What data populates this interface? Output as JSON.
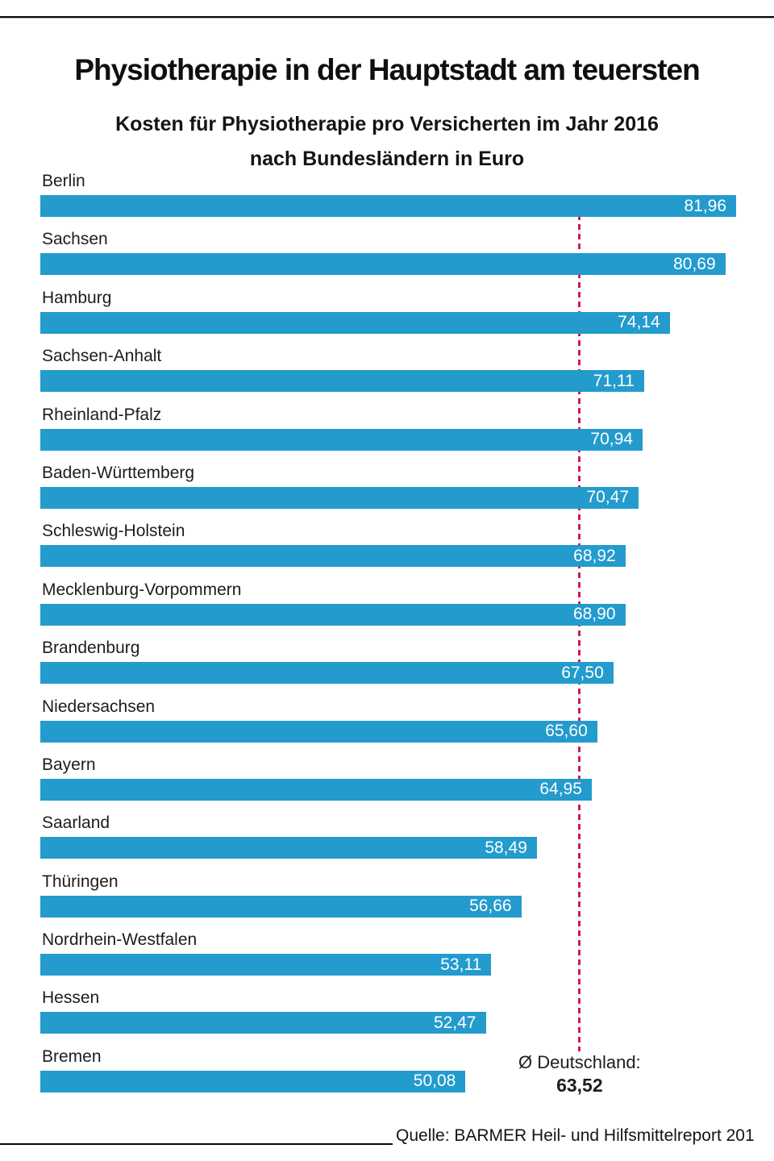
{
  "header": {
    "title": "Physiotherapie in der Hauptstadt am teuersten",
    "subtitle_line1": "Kosten für Physiotherapie pro Versicherten im Jahr 2016",
    "subtitle_line2": "nach Bundesländern in Euro"
  },
  "chart_data": {
    "type": "bar",
    "orientation": "horizontal",
    "title": "Physiotherapie in der Hauptstadt am teuersten",
    "subtitle": "Kosten für Physiotherapie pro Versicherten im Jahr 2016 nach Bundesländern in Euro",
    "categories": [
      "Berlin",
      "Sachsen",
      "Hamburg",
      "Sachsen-Anhalt",
      "Rheinland-Pfalz",
      "Baden-Württemberg",
      "Schleswig-Holstein",
      "Mecklenburg-Vorpommern",
      "Brandenburg",
      "Niedersachsen",
      "Bayern",
      "Saarland",
      "Thüringen",
      "Nordrhein-Westfalen",
      "Hessen",
      "Bremen"
    ],
    "values": [
      81.96,
      80.69,
      74.14,
      71.11,
      70.94,
      70.47,
      68.92,
      68.9,
      67.5,
      65.6,
      64.95,
      58.49,
      56.66,
      53.11,
      52.47,
      50.08
    ],
    "value_labels": [
      "81,96",
      "80,69",
      "74,14",
      "71,11",
      "70,94",
      "70,47",
      "68,92",
      "68,90",
      "67,50",
      "65,60",
      "64,95",
      "58,49",
      "56,66",
      "53,11",
      "52,47",
      "50,08"
    ],
    "unit": "Euro",
    "xlim": [
      0,
      82
    ],
    "grid": false,
    "legend": false,
    "bar_color": "#239bcd",
    "value_label_color": "#ffffff",
    "average_line": {
      "label": "Ø Deutschland:",
      "value": 63.52,
      "value_label": "63,52",
      "color": "#cf185c",
      "style": "dashed"
    }
  },
  "footer": {
    "source": "Quelle: BARMER Heil- und Hilfsmittelreport 201"
  }
}
